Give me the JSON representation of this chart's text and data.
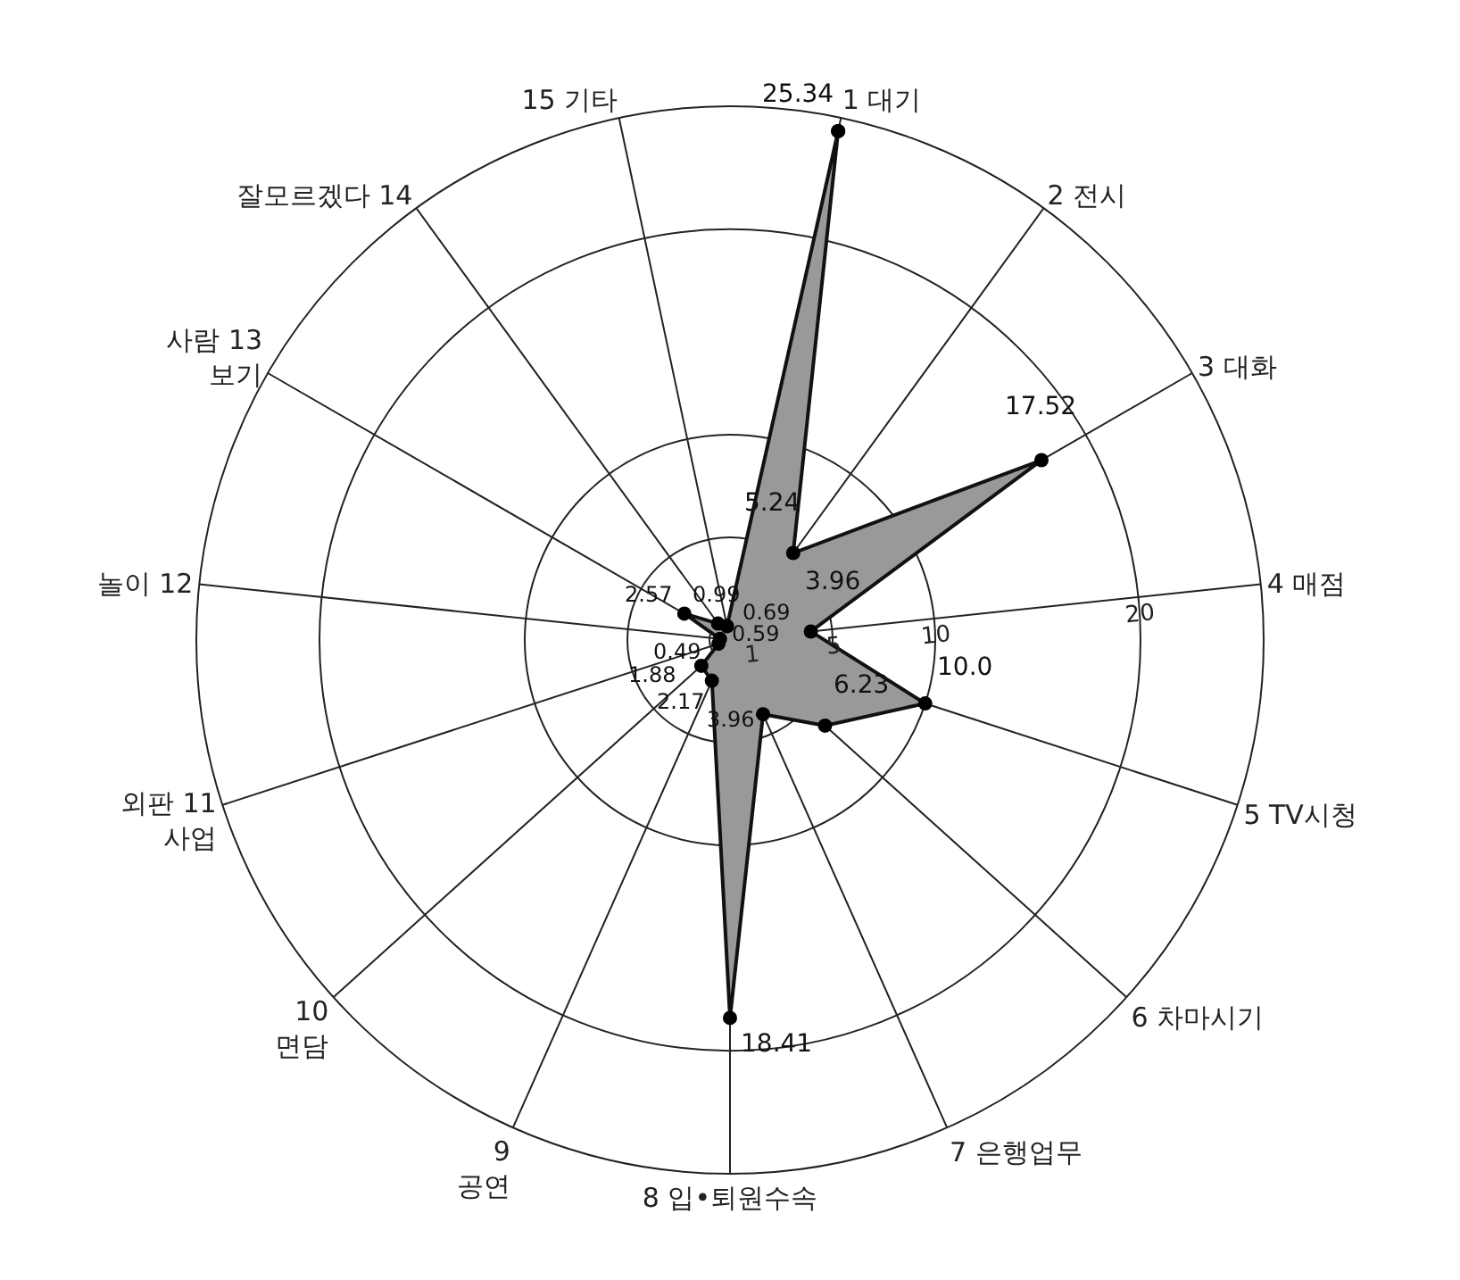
{
  "chart_data": {
    "type": "radar",
    "categories": [
      "1 대기",
      "2 전시",
      "3 대화",
      "4 매점",
      "5 TV시청",
      "6 차마시기",
      "7 은행업무",
      "8 입•퇴원수속",
      "9\n공연",
      "10\n면담",
      "외판 11\n사업",
      "놀이 12",
      "사람 13\n보기",
      "잘모르겠다 14",
      "15 기타"
    ],
    "series": [
      {
        "color": "#999999",
        "values": [
          25.34,
          5.24,
          17.52,
          3.96,
          10.0,
          6.23,
          3.96,
          18.41,
          2.17,
          1.88,
          0.59,
          0.49,
          2.57,
          0.99,
          0.69
        ],
        "value_labels": [
          "25.34",
          "5.24",
          "17.52",
          "3.96",
          "10.0",
          "6.23",
          "3.96",
          "18.41",
          "2.17",
          "1.88",
          "0.59",
          "0.49",
          "2.57",
          "0.99",
          "0.69"
        ]
      }
    ],
    "ylim": [
      0,
      26
    ],
    "yticks": [
      1,
      5,
      10,
      20
    ],
    "grid": true,
    "marker": "circle"
  }
}
